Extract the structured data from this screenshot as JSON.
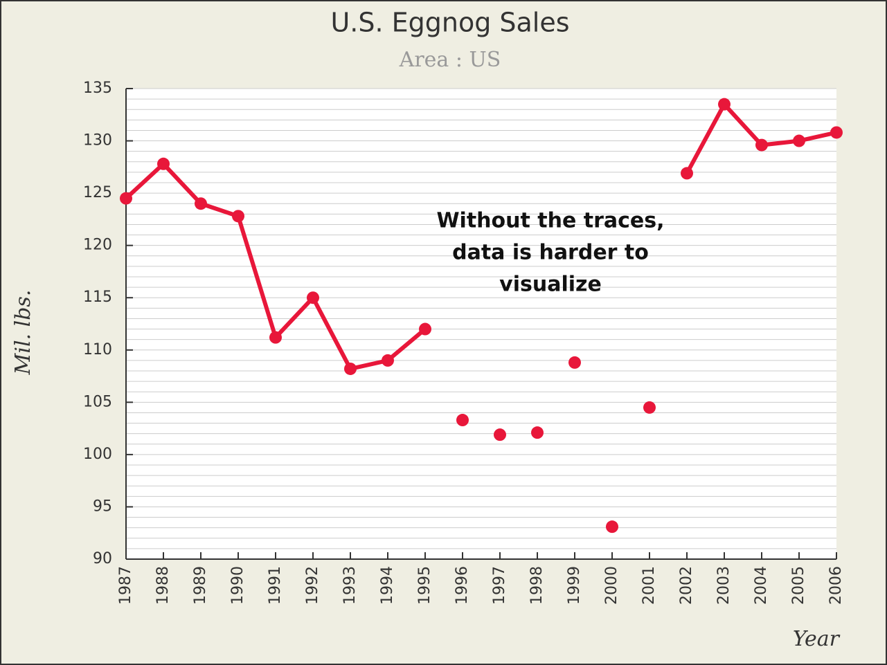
{
  "chart_data": {
    "type": "line",
    "title": "U.S. Eggnog Sales",
    "subtitle": "Area : US",
    "y_label": "Mil. lbs.",
    "x_label": "Year",
    "annotation": [
      "Without the traces,",
      "data is harder to",
      "visualize"
    ],
    "categories": [
      "1987",
      "1988",
      "1989",
      "1990",
      "1991",
      "1992",
      "1993",
      "1994",
      "1995",
      "1996",
      "1997",
      "1998",
      "1999",
      "2000",
      "2001",
      "2002",
      "2003",
      "2004",
      "2005",
      "2006"
    ],
    "values": [
      124.5,
      127.8,
      124,
      122.8,
      111.2,
      115,
      108.2,
      109,
      112,
      103.3,
      101.9,
      102.1,
      108.8,
      93.1,
      104.5,
      126.9,
      133.5,
      129.6,
      130,
      130.8
    ],
    "traced": [
      true,
      true,
      true,
      true,
      true,
      true,
      true,
      true,
      true,
      false,
      false,
      false,
      false,
      false,
      false,
      true,
      true,
      true,
      true,
      true
    ],
    "color": "#e8173a",
    "ylim": [
      90,
      135
    ],
    "yticks": [
      90,
      95,
      100,
      105,
      110,
      115,
      120,
      125,
      130,
      135
    ],
    "grid": true,
    "minor_step": 1
  }
}
